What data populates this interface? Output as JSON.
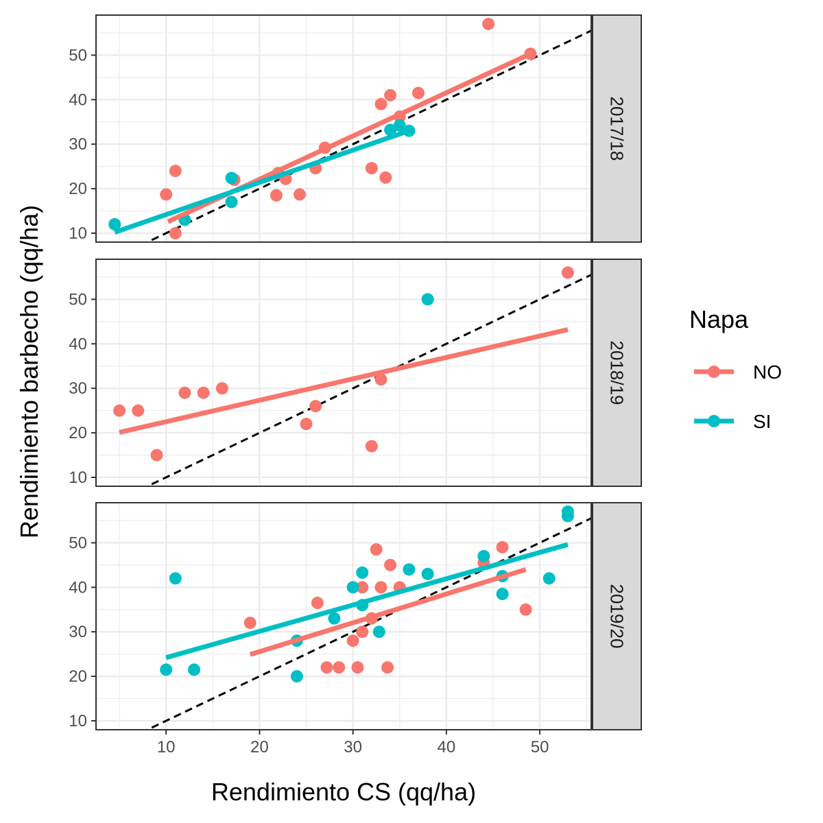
{
  "chart_data": {
    "type": "scatter",
    "xlabel": "Rendimiento CS (qq/ha)",
    "ylabel": "Rendimiento barbecho (qq/ha)",
    "xlim": [
      2.5,
      55.5
    ],
    "ylim": [
      8,
      59
    ],
    "x_ticks": [
      10,
      20,
      30,
      40,
      50
    ],
    "y_ticks": [
      10,
      20,
      30,
      40,
      50
    ],
    "grid": true,
    "reference_line": {
      "type": "identity",
      "style": "dashed",
      "color": "#000000"
    },
    "legend": {
      "title": "Napa",
      "position": "right",
      "entries": [
        {
          "label": "NO",
          "color": "#F8766D"
        },
        {
          "label": "SI",
          "color": "#00BFC4"
        }
      ]
    },
    "facets": [
      {
        "label": "2017/18",
        "series": [
          {
            "name": "NO",
            "color": "#F8766D",
            "points": [
              [
                44.5,
                57
              ],
              [
                49,
                50.3
              ],
              [
                10,
                18.7
              ],
              [
                11,
                24
              ],
              [
                11,
                10
              ],
              [
                17.3,
                22
              ],
              [
                21.8,
                18.5
              ],
              [
                22,
                23.5
              ],
              [
                22.8,
                22.2
              ],
              [
                24.3,
                18.7
              ],
              [
                26,
                24.6
              ],
              [
                27,
                29.2
              ],
              [
                32,
                24.6
              ],
              [
                33,
                39
              ],
              [
                33.5,
                22.5
              ],
              [
                34,
                41
              ],
              [
                35,
                36.2
              ],
              [
                37,
                41.5
              ]
            ],
            "fit": [
              [
                10.2,
                12.6
              ],
              [
                49,
                50.3
              ]
            ]
          },
          {
            "name": "SI",
            "color": "#00BFC4",
            "points": [
              [
                4.5,
                12
              ],
              [
                12,
                13
              ],
              [
                17,
                22.4
              ],
              [
                17,
                17
              ],
              [
                34,
                33.2
              ],
              [
                35,
                34.2
              ],
              [
                36,
                33
              ]
            ],
            "fit": [
              [
                4.5,
                10.2
              ],
              [
                36,
                33
              ]
            ]
          }
        ]
      },
      {
        "label": "2018/19",
        "series": [
          {
            "name": "NO",
            "color": "#F8766D",
            "points": [
              [
                5,
                25
              ],
              [
                7,
                25
              ],
              [
                9,
                15
              ],
              [
                12,
                29
              ],
              [
                14,
                29
              ],
              [
                16,
                30
              ],
              [
                25,
                22
              ],
              [
                26,
                26
              ],
              [
                32,
                17
              ],
              [
                33,
                32
              ],
              [
                53,
                56
              ]
            ],
            "fit": [
              [
                5,
                20.1
              ],
              [
                53,
                43.2
              ]
            ]
          },
          {
            "name": "SI",
            "color": "#00BFC4",
            "points": [
              [
                38,
                50
              ]
            ],
            "fit": []
          }
        ]
      },
      {
        "label": "2019/20",
        "series": [
          {
            "name": "NO",
            "color": "#F8766D",
            "points": [
              [
                19,
                32
              ],
              [
                26.2,
                36.5
              ],
              [
                27.2,
                22
              ],
              [
                28.5,
                22
              ],
              [
                30,
                28
              ],
              [
                30.5,
                22
              ],
              [
                31,
                40
              ],
              [
                31,
                30
              ],
              [
                32,
                33
              ],
              [
                32.5,
                48.5
              ],
              [
                33,
                40
              ],
              [
                33.7,
                22
              ],
              [
                34,
                45
              ],
              [
                35,
                40
              ],
              [
                44,
                45.5
              ],
              [
                46,
                49
              ],
              [
                48.5,
                35
              ]
            ],
            "fit": [
              [
                19,
                24.9
              ],
              [
                48.5,
                44
              ]
            ]
          },
          {
            "name": "SI",
            "color": "#00BFC4",
            "points": [
              [
                10,
                21.5
              ],
              [
                11,
                42
              ],
              [
                13,
                21.5
              ],
              [
                24,
                28
              ],
              [
                24,
                20
              ],
              [
                28,
                33
              ],
              [
                30,
                40
              ],
              [
                31,
                43.3
              ],
              [
                31,
                36
              ],
              [
                32.8,
                30
              ],
              [
                36,
                44
              ],
              [
                38,
                43
              ],
              [
                44,
                47
              ],
              [
                46,
                42.5
              ],
              [
                46,
                38.5
              ],
              [
                51,
                42
              ],
              [
                53,
                57
              ],
              [
                53,
                56
              ]
            ],
            "fit": [
              [
                10,
                24.2
              ],
              [
                53,
                49.6
              ]
            ]
          }
        ]
      }
    ]
  }
}
